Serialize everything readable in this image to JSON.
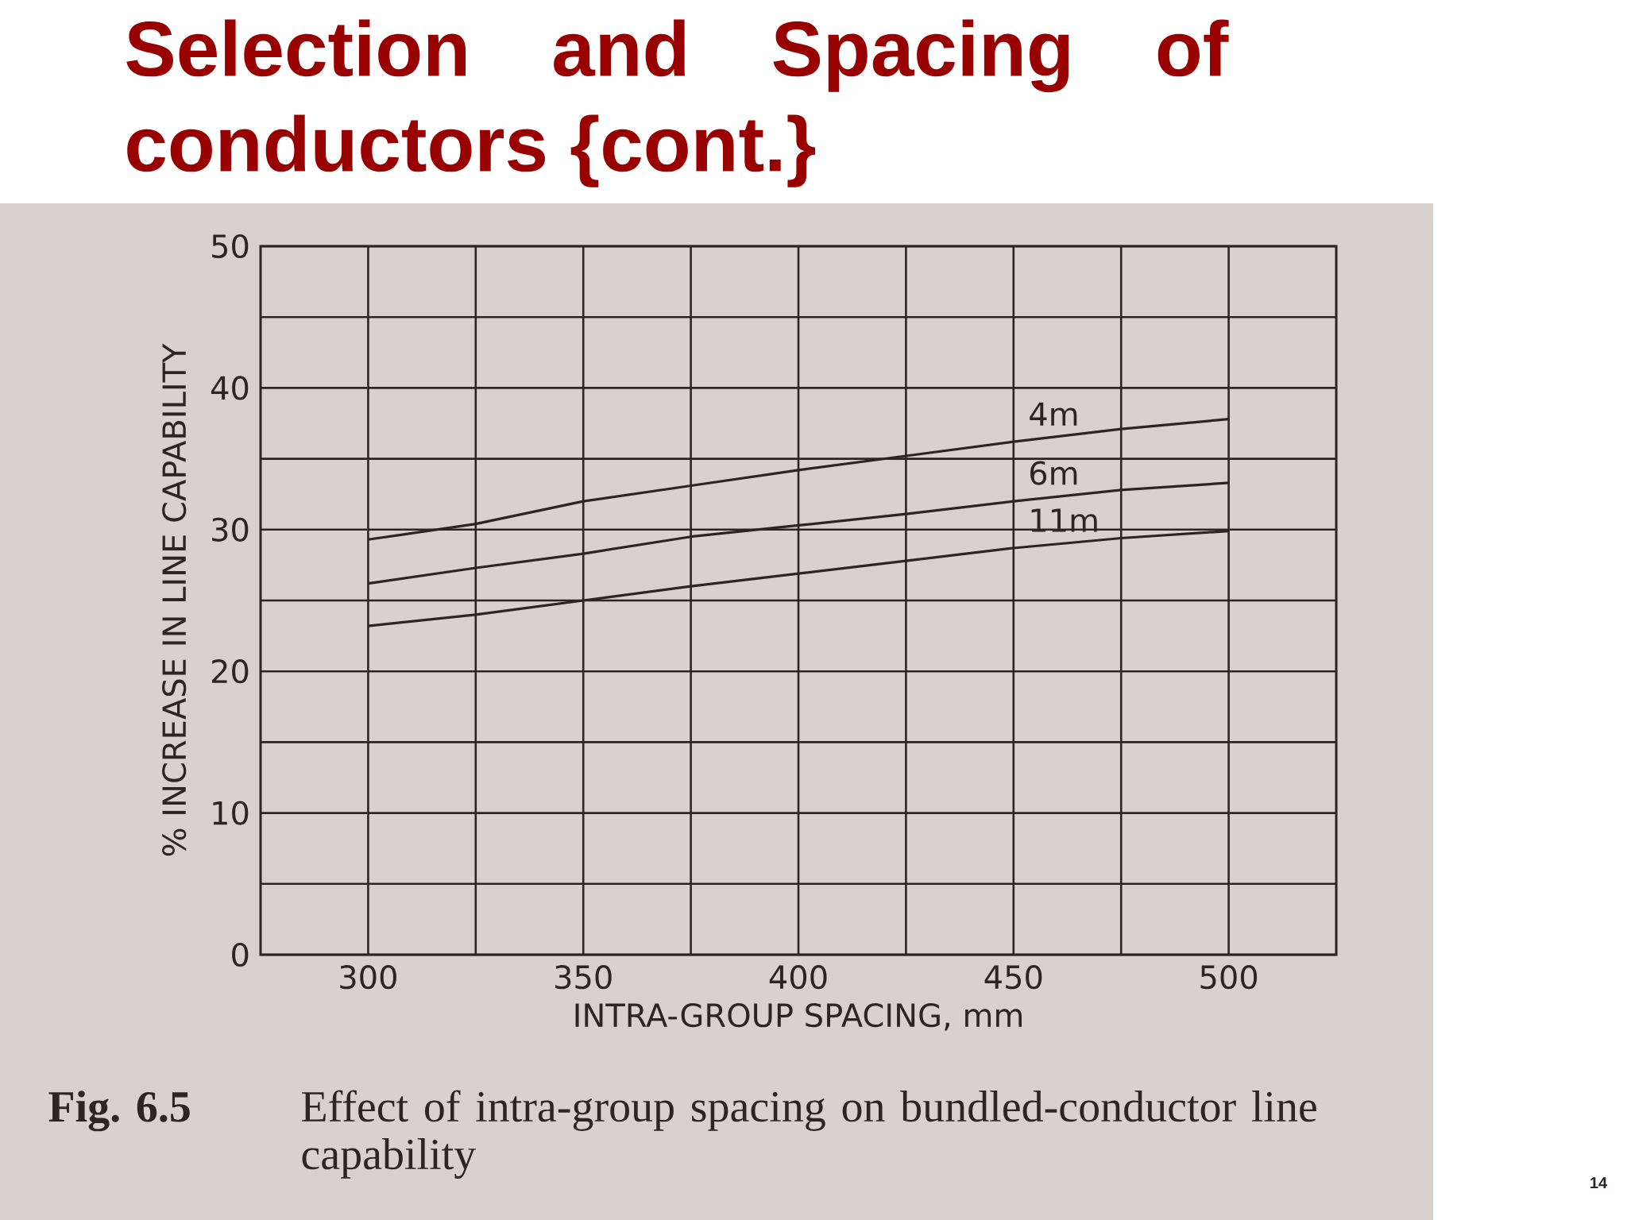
{
  "chart_data": {
    "type": "line",
    "title": "Selection and Spacing of conductors {cont.}",
    "xlabel": "INTRA-GROUP SPACING, mm",
    "ylabel": "% INCREASE IN LINE CAPABILITY",
    "x": [
      300,
      325,
      350,
      375,
      400,
      425,
      450,
      475,
      500
    ],
    "series": [
      {
        "name": "4m",
        "color": "#2b2523",
        "values": [
          29.3,
          30.4,
          32.0,
          33.1,
          34.2,
          35.2,
          36.2,
          37.1,
          37.8
        ]
      },
      {
        "name": "6m",
        "color": "#2b2523",
        "values": [
          26.2,
          27.3,
          28.3,
          29.5,
          30.3,
          31.1,
          32.0,
          32.8,
          33.3
        ]
      },
      {
        "name": "11m",
        "color": "#2b2523",
        "values": [
          23.2,
          24.0,
          25.0,
          26.0,
          26.9,
          27.8,
          28.7,
          29.4,
          29.9
        ]
      }
    ],
    "xlim": [
      275,
      525
    ],
    "ylim": [
      0,
      50
    ],
    "xticks": [
      300,
      {
        "value": 325,
        "label": null
      },
      350,
      {
        "value": 375,
        "label": null
      },
      400,
      {
        "value": 425,
        "label": null
      },
      450,
      {
        "value": 475,
        "label": null
      },
      500
    ],
    "yticks": [
      0,
      {
        "value": 5,
        "label": null
      },
      10,
      {
        "value": 15,
        "label": null
      },
      20,
      {
        "value": 25,
        "label": null
      },
      30,
      {
        "value": 35,
        "label": null
      },
      40,
      {
        "value": 45,
        "label": null
      },
      50
    ],
    "grid": true,
    "annotations": [
      "Fig. 6.5",
      "Effect of intra-group spacing on bundled-conductor line capability",
      "14"
    ]
  }
}
